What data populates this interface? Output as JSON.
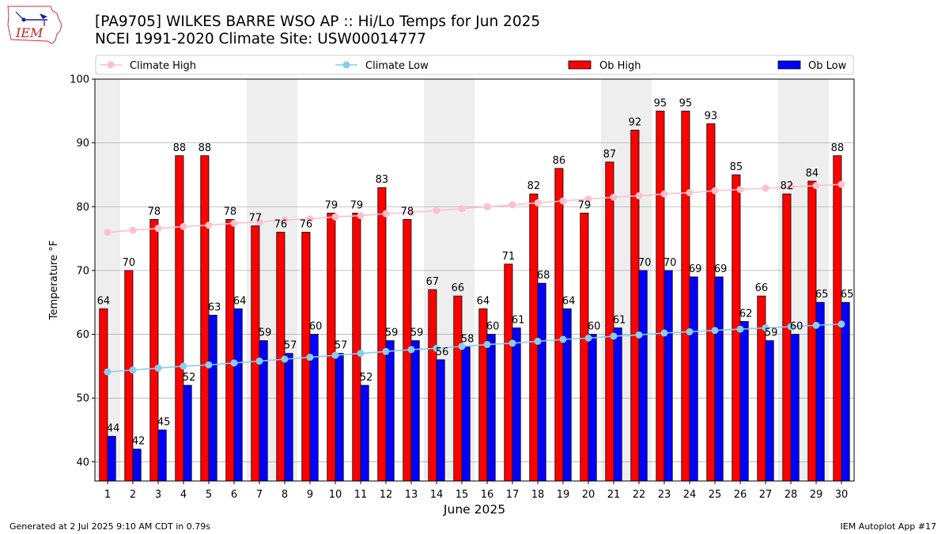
{
  "title_line1": "[PA9705] WILKES BARRE WSO AP :: Hi/Lo Temps for Jun 2025",
  "title_line2": "NCEI 1991-2020 Climate Site: USW00014777",
  "footer_left": "Generated at 2 Jul 2025 9:10 AM CDT in 0.79s",
  "footer_right": "IEM Autoplot App #17",
  "logo_text": "IEM",
  "colors": {
    "ob_high": "#ff0000",
    "ob_low": "#0000ff",
    "climate_high": "#ffc0cb",
    "climate_low": "#87ceeb",
    "weekend_band": "#eeeeee",
    "logo": "#cc0000"
  },
  "chart_data": {
    "type": "bar",
    "xlabel": "June 2025",
    "ylabel": "Temperature °F",
    "ylim": [
      37,
      100
    ],
    "yticks": [
      40,
      50,
      60,
      70,
      80,
      90,
      100
    ],
    "grid": true,
    "legend_placement": "top",
    "categories": [
      "1",
      "2",
      "3",
      "4",
      "5",
      "6",
      "7",
      "8",
      "9",
      "10",
      "11",
      "12",
      "13",
      "14",
      "15",
      "16",
      "17",
      "18",
      "19",
      "20",
      "21",
      "22",
      "23",
      "24",
      "25",
      "26",
      "27",
      "28",
      "29",
      "30"
    ],
    "weekend_days": [
      1,
      7,
      8,
      14,
      15,
      21,
      22,
      28,
      29
    ],
    "series": [
      {
        "name": "Ob High",
        "type": "bar",
        "values": [
          64,
          70,
          78,
          88,
          88,
          78,
          77,
          76,
          76,
          79,
          79,
          83,
          78,
          67,
          66,
          64,
          71,
          82,
          86,
          79,
          87,
          92,
          95,
          95,
          93,
          85,
          66,
          82,
          84,
          88
        ]
      },
      {
        "name": "Ob Low",
        "type": "bar",
        "values": [
          44,
          42,
          45,
          52,
          63,
          64,
          59,
          57,
          60,
          57,
          52,
          59,
          59,
          56,
          58,
          60,
          61,
          68,
          64,
          60,
          61,
          70,
          70,
          69,
          69,
          62,
          59,
          60,
          65,
          65
        ]
      },
      {
        "name": "Climate High",
        "type": "line",
        "values": [
          76.0,
          76.3,
          76.6,
          76.9,
          77.1,
          77.4,
          77.6,
          77.9,
          78.1,
          78.4,
          78.6,
          78.9,
          79.1,
          79.4,
          79.7,
          80.0,
          80.3,
          80.6,
          80.9,
          81.2,
          81.5,
          81.7,
          82.0,
          82.2,
          82.5,
          82.7,
          82.9,
          83.1,
          83.3,
          83.5
        ]
      },
      {
        "name": "Climate Low",
        "type": "line",
        "values": [
          54.1,
          54.4,
          54.7,
          55.0,
          55.2,
          55.5,
          55.8,
          56.1,
          56.4,
          56.7,
          57.0,
          57.3,
          57.6,
          57.8,
          58.1,
          58.4,
          58.6,
          58.9,
          59.2,
          59.4,
          59.7,
          59.9,
          60.2,
          60.4,
          60.6,
          60.8,
          61.0,
          61.2,
          61.4,
          61.6
        ]
      }
    ]
  }
}
